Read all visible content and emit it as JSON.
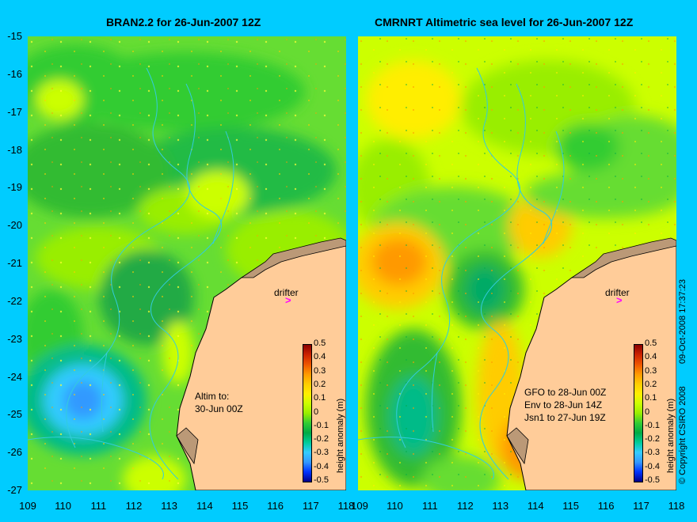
{
  "left_panel": {
    "title": "BRAN2.2 for 26-Jun-2007 12Z",
    "drifter_label": "drifter",
    "drifter_marker": ">",
    "note": [
      "Altim to:",
      "30-Jun 00Z"
    ],
    "colorbar_title": "height anomaly (m)"
  },
  "right_panel": {
    "title": "CMRNRT Altimetric sea level  for 26-Jun-2007 12Z",
    "drifter_label": "drifter",
    "drifter_marker": ">",
    "note": [
      "GFO to 28-Jun 00Z",
      "Env to 28-Jun 14Z",
      "Jsn1 to 27-Jun 19Z"
    ],
    "colorbar_title": "height anomaly (m)"
  },
  "y_ticks": [
    "-15",
    "-16",
    "-17",
    "-18",
    "-19",
    "-20",
    "-21",
    "-22",
    "-23",
    "-24",
    "-25",
    "-26",
    "-27"
  ],
  "x_ticks": [
    "109",
    "110",
    "111",
    "112",
    "113",
    "114",
    "115",
    "116",
    "117",
    "118"
  ],
  "colorbar_ticks": [
    "0.5",
    "0.4",
    "0.3",
    "0.2",
    "0.1",
    "0",
    "-0.1",
    "-0.2",
    "-0.3",
    "-0.4",
    "-0.5"
  ],
  "copyright": "© Copyright CSIRO 2008",
  "timestamp": "09-Oct-2008 17:37:23",
  "colors": {
    "background": "#00ccff",
    "land": "#ffcc99",
    "drifter": "#ff00ff",
    "coast": "#000000",
    "contour": "#33ccdd"
  },
  "colorbar_colors": [
    "#00008a",
    "#0033ff",
    "#3399ff",
    "#33ccff",
    "#00cc99",
    "#00aa44",
    "#33cc33",
    "#99ee00",
    "#ccff00",
    "#ffee00",
    "#ffcc00",
    "#ff9900",
    "#ee5500",
    "#cc2200",
    "#880000"
  ]
}
